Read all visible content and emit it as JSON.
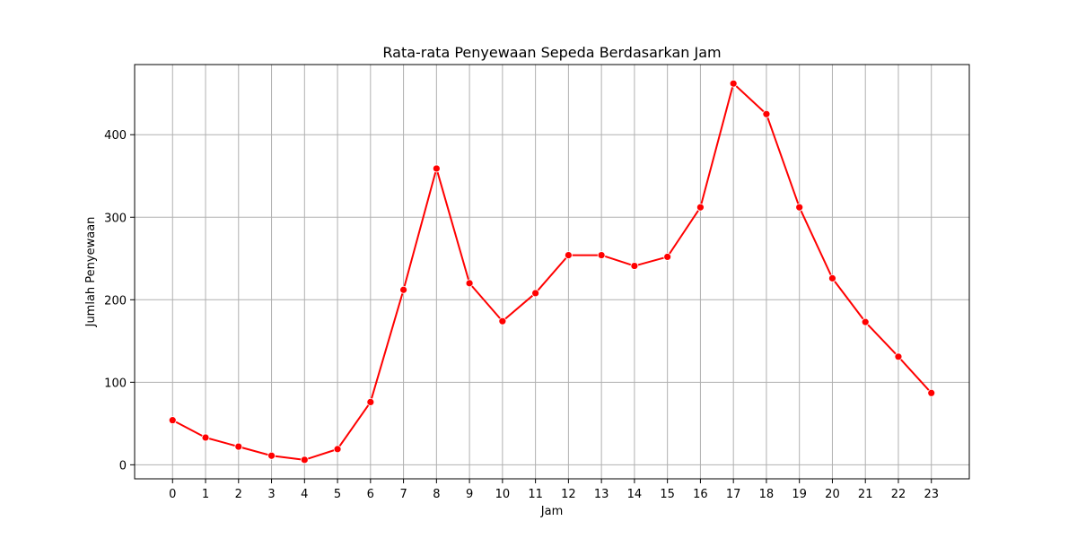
{
  "chart_data": {
    "type": "line",
    "title": "Rata-rata Penyewaan Sepeda Berdasarkan Jam",
    "xlabel": "Jam",
    "ylabel": "Jumlah Penyewaan",
    "x": [
      0,
      1,
      2,
      3,
      4,
      5,
      6,
      7,
      8,
      9,
      10,
      11,
      12,
      13,
      14,
      15,
      16,
      17,
      18,
      19,
      20,
      21,
      22,
      23
    ],
    "series": [
      {
        "values": [
          54,
          33,
          22,
          11,
          6,
          19,
          76,
          212,
          359,
          220,
          174,
          208,
          254,
          254,
          241,
          252,
          312,
          462,
          425,
          312,
          226,
          173,
          131,
          87
        ]
      }
    ],
    "xticks": [
      "0",
      "1",
      "2",
      "3",
      "4",
      "5",
      "6",
      "7",
      "8",
      "9",
      "10",
      "11",
      "12",
      "13",
      "14",
      "15",
      "16",
      "17",
      "18",
      "19",
      "20",
      "21",
      "22",
      "23"
    ],
    "yticks": [
      "0",
      "100",
      "200",
      "300",
      "400"
    ],
    "ylim": [
      -17,
      485
    ],
    "xlim": [
      -1.15,
      24.15
    ],
    "grid": true,
    "color": "#ff0000"
  }
}
